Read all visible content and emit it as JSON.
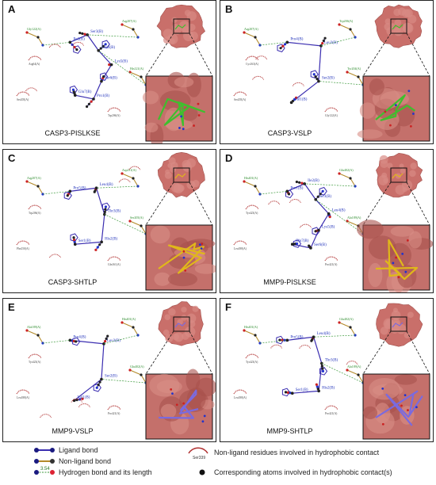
{
  "panels": [
    {
      "label": "A",
      "title": "CASP3-PISLKSE",
      "peptide": "PISLKSE",
      "residues": [
        "Ile2(B)",
        "Ser3(B)",
        "Leu4(B)",
        "Lys5(B)",
        "Ser6(B)",
        "Pro1(B)",
        "Glu7(B)"
      ],
      "contacts": [
        "Gly122(A)",
        "Arg207(A)",
        "His121(A)",
        "Ser205(A)",
        "Arg64(A)",
        "Trp206(A)"
      ]
    },
    {
      "label": "B",
      "title": "CASP3-VSLP",
      "peptide": "VSLP",
      "residues": [
        "Pro4(B)",
        "Leu3(B)",
        "Ser2(B)",
        "Val1(B)"
      ],
      "contacts": [
        "Arg207(A)",
        "Trp206(A)",
        "Tyr204(A)",
        "Ser205(A)",
        "Cys163(A)",
        "Gly122(A)"
      ]
    },
    {
      "label": "C",
      "title": "CASP3-SHTLP",
      "peptide": "SHTLP",
      "residues": [
        "Pro5(B)",
        "Leu4(B)",
        "Thr3(B)",
        "His2(B)",
        "Ser1(B)"
      ],
      "contacts": [
        "Arg207(A)",
        "Asp211(A)",
        "Ser205(A)",
        "Phe250(A)",
        "Trp206(A)",
        "Gln161(A)"
      ]
    },
    {
      "label": "D",
      "title": "MMP9-PISLKSE",
      "peptide": "PISLKSE",
      "residues": [
        "Pro1(B)",
        "Ile2(B)",
        "Ser3(B)",
        "Leu4(B)",
        "Lys5(B)",
        "Ser6(B)",
        "Glu7(B)"
      ],
      "contacts": [
        "His401(A)",
        "Glu402(A)",
        "Ala189(A)",
        "Leu188(A)",
        "Tyr423(A)",
        "Pro421(A)"
      ]
    },
    {
      "label": "E",
      "title": "MMP9-VSLP",
      "peptide": "VSLP",
      "residues": [
        "Pro4(B)",
        "Leu3(B)",
        "Ser2(B)",
        "Val1(B)"
      ],
      "contacts": [
        "Ala189(A)",
        "His401(A)",
        "Glu402(A)",
        "Leu188(A)",
        "Tyr423(A)",
        "Pro421(A)"
      ]
    },
    {
      "label": "F",
      "title": "MMP9-SHTLP",
      "peptide": "SHTLP",
      "residues": [
        "Pro5(B)",
        "Leu4(B)",
        "Thr3(B)",
        "His2(B)",
        "Ser1(B)"
      ],
      "contacts": [
        "His401(A)",
        "Glu402(A)",
        "Ala189(A)",
        "Leu188(A)",
        "Tyr423(A)",
        "Pro421(A)"
      ]
    }
  ],
  "legend": {
    "ligand_bond": "Ligand bond",
    "nonligand_bond": "Non-ligand bond",
    "hbond": "Hydrogen bond and its length",
    "hbond_value": "3.54",
    "hydrophobic": "Non-ligand residues involved in hydrophobic contact",
    "hydrophobic_example": "Ser339",
    "atoms": "Corresponding atoms involved in hydrophobic contact(s)"
  },
  "colors": {
    "ligand": "#3a2db0",
    "nonligand": "#b38a2a",
    "hbond": "#3d9a3d",
    "arc": "#b03030",
    "protein": "#c96f6a",
    "stick_A": "#3fbf2e",
    "stick_B": "#e0b81a",
    "stick_C": "#7a6adf"
  }
}
